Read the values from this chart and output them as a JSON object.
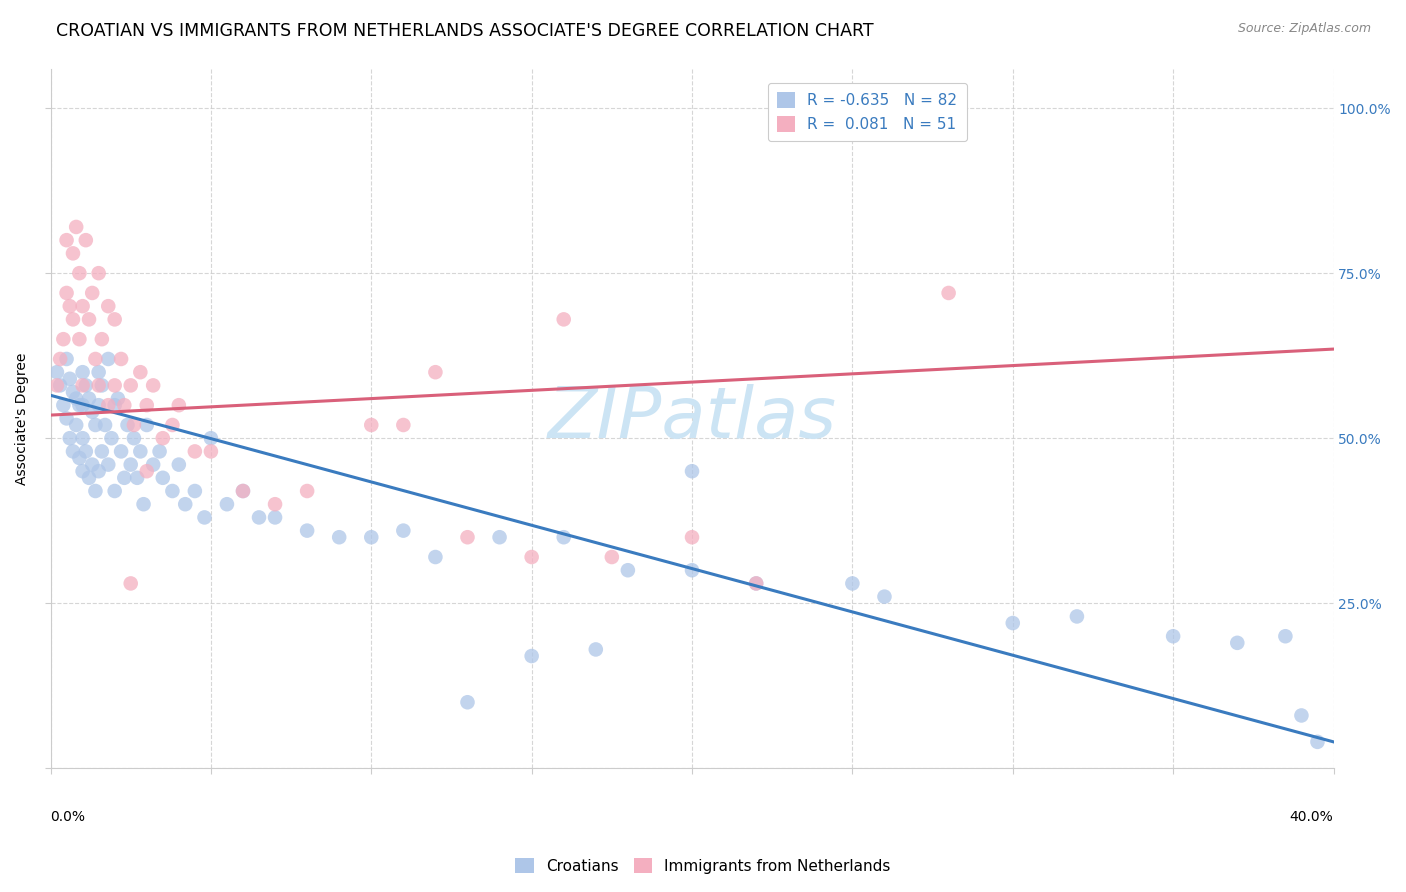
{
  "title": "CROATIAN VS IMMIGRANTS FROM NETHERLANDS ASSOCIATE'S DEGREE CORRELATION CHART",
  "source": "Source: ZipAtlas.com",
  "ylabel": "Associate's Degree",
  "watermark": "ZIPatlas",
  "blue_R": -0.635,
  "blue_N": 82,
  "pink_R": 0.081,
  "pink_N": 51,
  "blue_color": "#aec6e8",
  "pink_color": "#f4afc0",
  "blue_line_color": "#3a7bbf",
  "pink_line_color": "#d9607a",
  "x_min": 0.0,
  "x_max": 0.4,
  "y_min": 0.0,
  "y_max": 1.06,
  "yticks": [
    0.0,
    0.25,
    0.5,
    0.75,
    1.0
  ],
  "ytick_right_labels": [
    "",
    "25.0%",
    "50.0%",
    "75.0%",
    "100.0%"
  ],
  "blue_scatter_x": [
    0.002,
    0.003,
    0.004,
    0.005,
    0.005,
    0.006,
    0.006,
    0.007,
    0.007,
    0.008,
    0.008,
    0.009,
    0.009,
    0.01,
    0.01,
    0.01,
    0.01,
    0.011,
    0.011,
    0.012,
    0.012,
    0.013,
    0.013,
    0.014,
    0.014,
    0.015,
    0.015,
    0.015,
    0.016,
    0.016,
    0.017,
    0.018,
    0.018,
    0.019,
    0.02,
    0.02,
    0.021,
    0.022,
    0.023,
    0.024,
    0.025,
    0.026,
    0.027,
    0.028,
    0.029,
    0.03,
    0.032,
    0.034,
    0.035,
    0.038,
    0.04,
    0.042,
    0.045,
    0.048,
    0.05,
    0.055,
    0.06,
    0.065,
    0.07,
    0.08,
    0.09,
    0.1,
    0.11,
    0.12,
    0.14,
    0.16,
    0.18,
    0.2,
    0.22,
    0.26,
    0.3,
    0.32,
    0.35,
    0.37,
    0.385,
    0.39,
    0.395,
    0.2,
    0.25,
    0.15,
    0.17,
    0.13
  ],
  "blue_scatter_y": [
    0.6,
    0.58,
    0.55,
    0.62,
    0.53,
    0.59,
    0.5,
    0.57,
    0.48,
    0.56,
    0.52,
    0.55,
    0.47,
    0.6,
    0.55,
    0.5,
    0.45,
    0.58,
    0.48,
    0.56,
    0.44,
    0.54,
    0.46,
    0.52,
    0.42,
    0.6,
    0.55,
    0.45,
    0.58,
    0.48,
    0.52,
    0.62,
    0.46,
    0.5,
    0.55,
    0.42,
    0.56,
    0.48,
    0.44,
    0.52,
    0.46,
    0.5,
    0.44,
    0.48,
    0.4,
    0.52,
    0.46,
    0.48,
    0.44,
    0.42,
    0.46,
    0.4,
    0.42,
    0.38,
    0.5,
    0.4,
    0.42,
    0.38,
    0.38,
    0.36,
    0.35,
    0.35,
    0.36,
    0.32,
    0.35,
    0.35,
    0.3,
    0.3,
    0.28,
    0.26,
    0.22,
    0.23,
    0.2,
    0.19,
    0.2,
    0.08,
    0.04,
    0.45,
    0.28,
    0.17,
    0.18,
    0.1
  ],
  "pink_scatter_x": [
    0.002,
    0.003,
    0.004,
    0.005,
    0.005,
    0.006,
    0.007,
    0.007,
    0.008,
    0.009,
    0.009,
    0.01,
    0.01,
    0.011,
    0.012,
    0.013,
    0.014,
    0.015,
    0.015,
    0.016,
    0.018,
    0.018,
    0.02,
    0.02,
    0.022,
    0.023,
    0.025,
    0.026,
    0.028,
    0.03,
    0.032,
    0.035,
    0.038,
    0.04,
    0.045,
    0.05,
    0.06,
    0.07,
    0.08,
    0.1,
    0.11,
    0.12,
    0.13,
    0.15,
    0.16,
    0.175,
    0.2,
    0.22,
    0.03,
    0.025,
    0.28
  ],
  "pink_scatter_y": [
    0.58,
    0.62,
    0.65,
    0.72,
    0.8,
    0.7,
    0.78,
    0.68,
    0.82,
    0.75,
    0.65,
    0.7,
    0.58,
    0.8,
    0.68,
    0.72,
    0.62,
    0.75,
    0.58,
    0.65,
    0.7,
    0.55,
    0.68,
    0.58,
    0.62,
    0.55,
    0.58,
    0.52,
    0.6,
    0.55,
    0.58,
    0.5,
    0.52,
    0.55,
    0.48,
    0.48,
    0.42,
    0.4,
    0.42,
    0.52,
    0.52,
    0.6,
    0.35,
    0.32,
    0.68,
    0.32,
    0.35,
    0.28,
    0.45,
    0.28,
    0.72
  ],
  "blue_line_x": [
    0.0,
    0.4
  ],
  "blue_line_y": [
    0.565,
    0.04
  ],
  "pink_line_x": [
    0.0,
    0.4
  ],
  "pink_line_y": [
    0.535,
    0.635
  ],
  "grid_color": "#cccccc",
  "bg_color": "#ffffff",
  "title_fontsize": 12.5,
  "axis_fontsize": 10,
  "legend_fontsize": 11,
  "watermark_fontsize": 52,
  "watermark_color": "#cce4f4",
  "source_fontsize": 9,
  "scatter_size": 110,
  "scatter_alpha": 0.75
}
